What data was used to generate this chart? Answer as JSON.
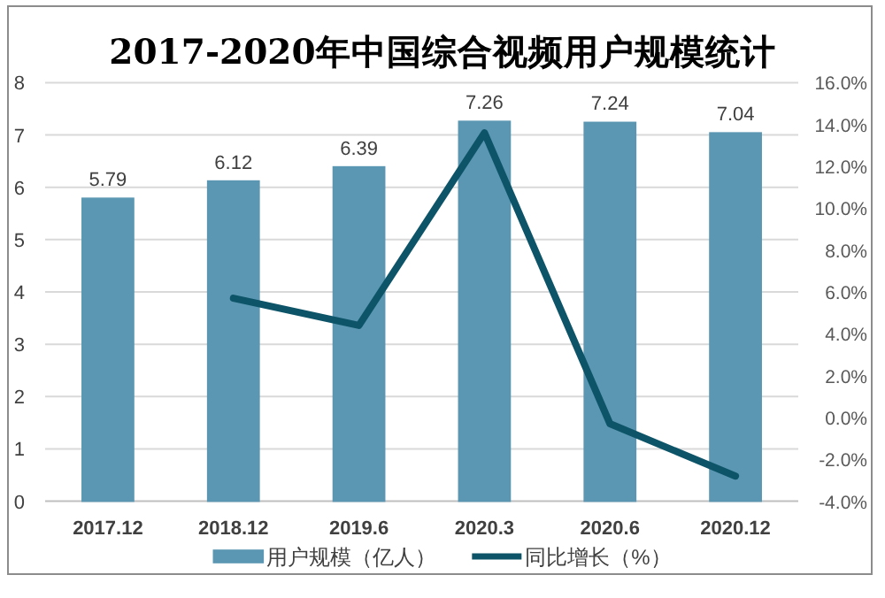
{
  "chart_data": {
    "type": "bar",
    "title": "2017-2020年中国综合视频用户规模统计",
    "categories": [
      "2017.12",
      "2018.12",
      "2019.6",
      "2020.3",
      "2020.6",
      "2020.12"
    ],
    "series": [
      {
        "name": "用户规模（亿人）",
        "color": "#5b97b2",
        "values": [
          5.79,
          6.12,
          6.39,
          7.26,
          7.24,
          7.04
        ],
        "value_labels": [
          "5.79",
          "6.12",
          "6.39",
          "7.26",
          "7.24",
          "7.04"
        ]
      },
      {
        "name": "同比增长（%）",
        "type": "line",
        "axis": "y2",
        "color": "#0d5468",
        "values": [
          null,
          5.7,
          4.4,
          13.6,
          -0.3,
          -2.8
        ]
      }
    ],
    "ylim": [
      0,
      8
    ],
    "yticks": [
      0,
      1,
      2,
      3,
      4,
      5,
      6,
      7,
      8
    ],
    "y2lim": [
      -4,
      16
    ],
    "y2ticks": [
      {
        "value": -4,
        "label": "-4.0%"
      },
      {
        "value": -2,
        "label": "-2.0%"
      },
      {
        "value": 0,
        "label": "0.0%"
      },
      {
        "value": 2,
        "label": "2.0%"
      },
      {
        "value": 4,
        "label": "4.0%"
      },
      {
        "value": 6,
        "label": "6.0%"
      },
      {
        "value": 8,
        "label": "8.0%"
      },
      {
        "value": 10,
        "label": "10.0%"
      },
      {
        "value": 12,
        "label": "12.0%"
      },
      {
        "value": 14,
        "label": "14.0%"
      },
      {
        "value": 16,
        "label": "16.0%"
      }
    ],
    "grid": "y",
    "legend": "bottom"
  }
}
